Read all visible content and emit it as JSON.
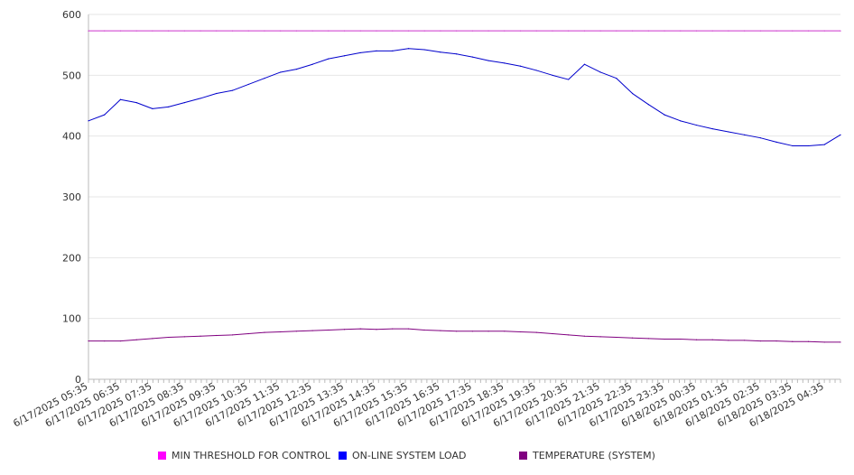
{
  "chart_data": {
    "type": "line",
    "title": "",
    "xlabel": "",
    "ylabel": "",
    "ylim": [
      0,
      600
    ],
    "yticks": [
      0,
      100,
      200,
      300,
      400,
      500,
      600
    ],
    "grid": true,
    "legend_position": "bottom",
    "x_tick_labels": [
      "6/17/2025 05:35",
      "6/17/2025 06:35",
      "6/17/2025 07:35",
      "6/17/2025 08:35",
      "6/17/2025 09:35",
      "6/17/2025 10:35",
      "6/17/2025 11:35",
      "6/17/2025 12:35",
      "6/17/2025 13:35",
      "6/17/2025 14:35",
      "6/17/2025 15:35",
      "6/17/2025 16:35",
      "6/17/2025 17:35",
      "6/17/2025 18:35",
      "6/17/2025 19:35",
      "6/17/2025 20:35",
      "6/17/2025 21:35",
      "6/17/2025 22:35",
      "6/17/2025 23:35",
      "6/18/2025 00:35",
      "6/18/2025 01:35",
      "6/18/2025 02:35",
      "6/18/2025 03:35",
      "6/18/2025 04:35"
    ],
    "x": [
      "6/17/2025 05:35",
      "6/17/2025 06:05",
      "6/17/2025 06:35",
      "6/17/2025 07:05",
      "6/17/2025 07:35",
      "6/17/2025 08:05",
      "6/17/2025 08:35",
      "6/17/2025 09:05",
      "6/17/2025 09:35",
      "6/17/2025 10:05",
      "6/17/2025 10:35",
      "6/17/2025 11:05",
      "6/17/2025 11:35",
      "6/17/2025 12:05",
      "6/17/2025 12:35",
      "6/17/2025 13:05",
      "6/17/2025 13:35",
      "6/17/2025 14:05",
      "6/17/2025 14:35",
      "6/17/2025 15:05",
      "6/17/2025 15:35",
      "6/17/2025 16:05",
      "6/17/2025 16:35",
      "6/17/2025 17:05",
      "6/17/2025 17:35",
      "6/17/2025 18:05",
      "6/17/2025 18:35",
      "6/17/2025 19:05",
      "6/17/2025 19:35",
      "6/17/2025 20:05",
      "6/17/2025 20:35",
      "6/17/2025 21:05",
      "6/17/2025 21:35",
      "6/17/2025 22:05",
      "6/17/2025 22:35",
      "6/17/2025 23:05",
      "6/17/2025 23:35",
      "6/18/2025 00:05",
      "6/18/2025 00:35",
      "6/18/2025 01:05",
      "6/18/2025 01:35",
      "6/18/2025 02:05",
      "6/18/2025 02:35",
      "6/18/2025 03:05",
      "6/18/2025 03:35",
      "6/18/2025 04:05",
      "6/18/2025 04:35",
      "6/18/2025 05:05"
    ],
    "series": [
      {
        "name": "MIN THRESHOLD FOR CONTROL",
        "color": "#cc33cc",
        "swatch_color": "#ff00ff",
        "values": [
          573,
          573,
          573,
          573,
          573,
          573,
          573,
          573,
          573,
          573,
          573,
          573,
          573,
          573,
          573,
          573,
          573,
          573,
          573,
          573,
          573,
          573,
          573,
          573,
          573,
          573,
          573,
          573,
          573,
          573,
          573,
          573,
          573,
          573,
          573,
          573,
          573,
          573,
          573,
          573,
          573,
          573,
          573,
          573,
          573,
          573,
          573,
          573
        ]
      },
      {
        "name": "ON-LINE SYSTEM LOAD",
        "color": "#0000cc",
        "swatch_color": "#0000ff",
        "values": [
          425,
          435,
          460,
          455,
          445,
          448,
          455,
          462,
          470,
          475,
          485,
          495,
          505,
          510,
          518,
          527,
          532,
          537,
          540,
          540,
          544,
          542,
          538,
          535,
          530,
          524,
          520,
          515,
          508,
          500,
          493,
          518,
          505,
          495,
          470,
          452,
          435,
          425,
          418,
          412,
          407,
          402,
          397,
          390,
          384,
          384,
          386,
          402
        ]
      },
      {
        "name": "TEMPERATURE (SYSTEM)",
        "color": "#800080",
        "swatch_color": "#800080",
        "values": [
          63,
          63,
          63,
          65,
          67,
          69,
          70,
          71,
          72,
          73,
          75,
          77,
          78,
          79,
          80,
          81,
          82,
          83,
          82,
          83,
          83,
          81,
          80,
          79,
          79,
          79,
          79,
          78,
          77,
          75,
          73,
          71,
          70,
          69,
          68,
          67,
          66,
          66,
          65,
          65,
          64,
          64,
          63,
          63,
          62,
          62,
          61,
          61
        ]
      }
    ]
  }
}
